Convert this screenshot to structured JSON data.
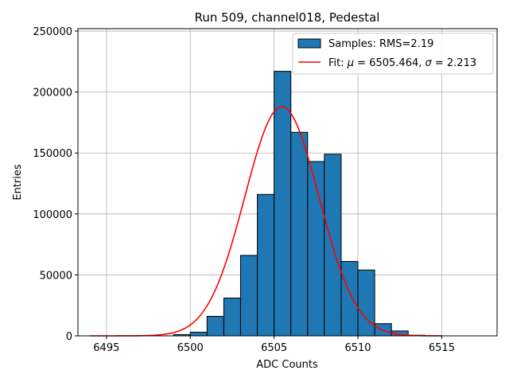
{
  "chart_data": {
    "type": "bar",
    "title": "Run 509, channel018, Pedestal",
    "xlabel": "ADC Counts",
    "ylabel": "Entries",
    "xlim": [
      6493.3,
      6518.3
    ],
    "ylim": [
      0,
      252000
    ],
    "xticks": [
      6495,
      6500,
      6505,
      6510,
      6515
    ],
    "yticks": [
      0,
      50000,
      100000,
      150000,
      200000,
      250000
    ],
    "grid": true,
    "legend_position": "top-right",
    "colors": {
      "bar": "#1f77b4",
      "fit": "#ff0000",
      "grid": "#b0b0b0"
    },
    "histogram": {
      "name": "Samples: RMS=2.19",
      "bin_width": 1,
      "bins": [
        {
          "x": 6499,
          "count": 1000
        },
        {
          "x": 6500,
          "count": 3000
        },
        {
          "x": 6501,
          "count": 16000
        },
        {
          "x": 6502,
          "count": 31000
        },
        {
          "x": 6503,
          "count": 66000
        },
        {
          "x": 6504,
          "count": 116000
        },
        {
          "x": 6505,
          "count": 217000
        },
        {
          "x": 6506,
          "count": 167000
        },
        {
          "x": 6507,
          "count": 143000
        },
        {
          "x": 6508,
          "count": 149000
        },
        {
          "x": 6509,
          "count": 61000
        },
        {
          "x": 6510,
          "count": 54000
        },
        {
          "x": 6511,
          "count": 10000
        },
        {
          "x": 6512,
          "count": 4000
        },
        {
          "x": 6513,
          "count": 500
        }
      ]
    },
    "fit": {
      "name": "Fit: μ = 6505.464, σ = 2.213",
      "label_prefix": "Fit: ",
      "mu_label": "μ",
      "mu_text": " = 6505.464, ",
      "sigma_label": "σ",
      "sigma_text": " = 2.213",
      "mu": 6505.464,
      "sigma": 2.213,
      "amplitude": 188000,
      "x_range": [
        6494,
        6515
      ]
    }
  }
}
